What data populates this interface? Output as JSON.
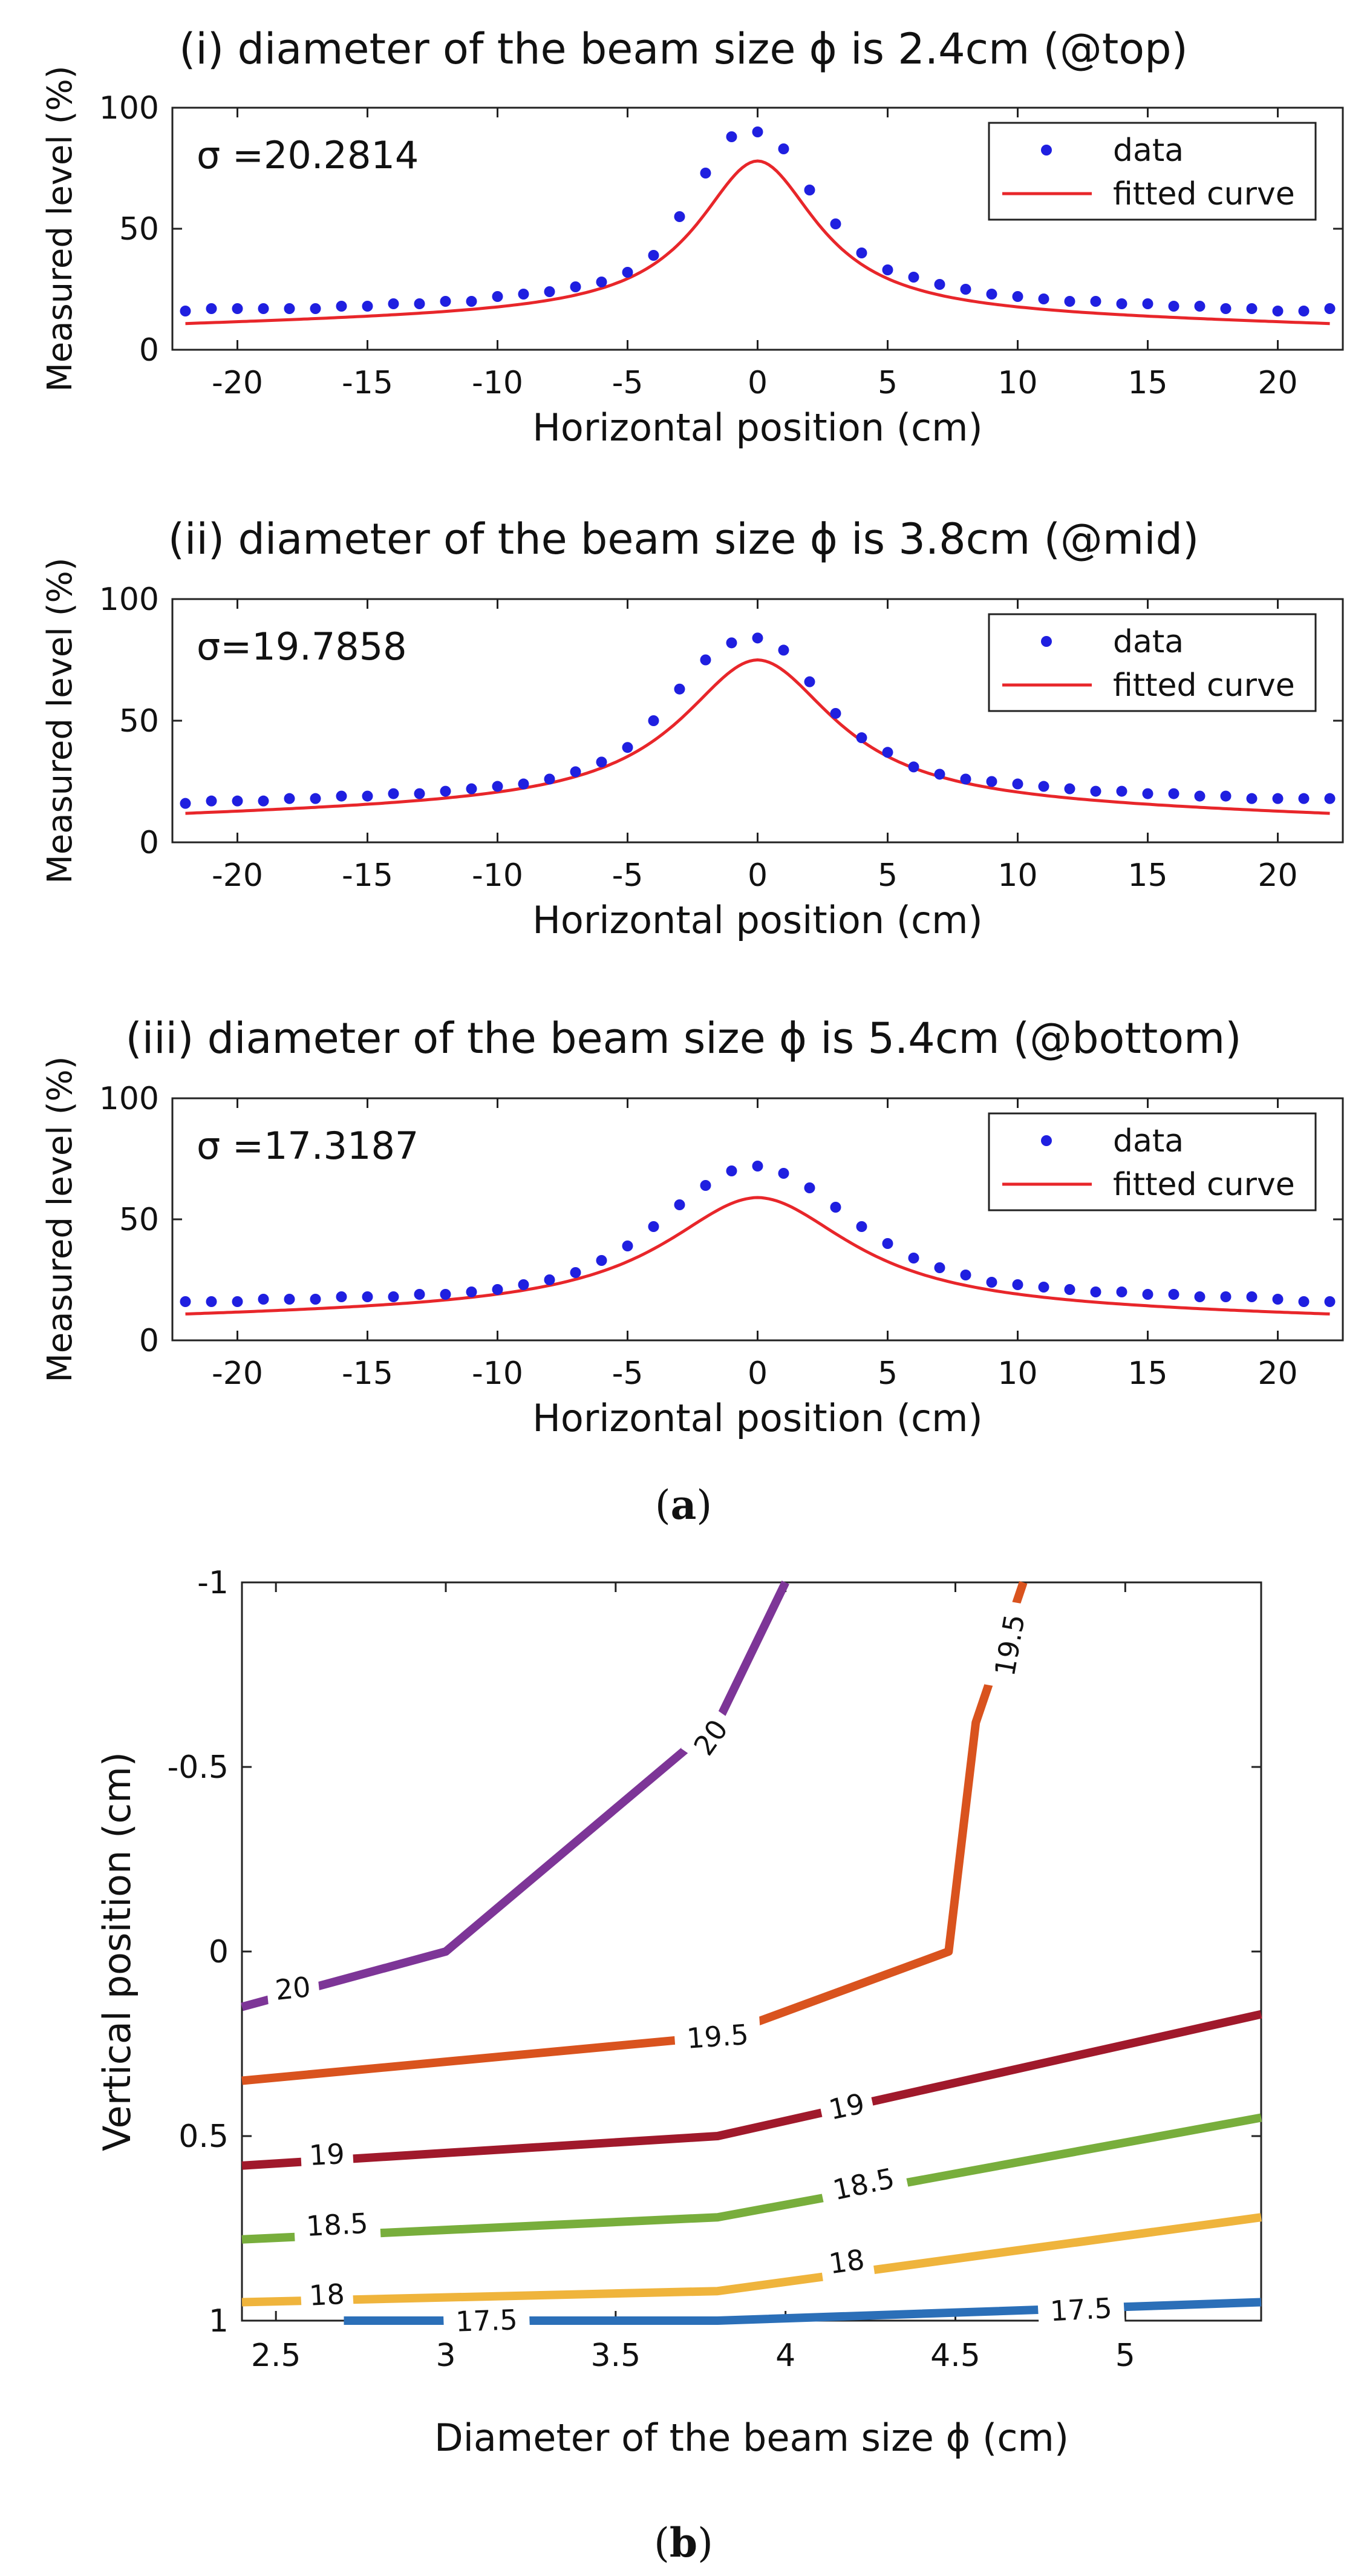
{
  "figure": {
    "caption_a": {
      "open": "(",
      "letter": "a",
      "close": ")"
    },
    "caption_b": {
      "open": "(",
      "letter": "b",
      "close": ")"
    }
  },
  "colors": {
    "data_marker": "#1f1fe0",
    "fit_line": "#e8262a",
    "contour_17_5": "#2b6fb8",
    "contour_18": "#efb43c",
    "contour_18_5": "#78ae3c",
    "contour_19": "#a0192b",
    "contour_19_5": "#d9531e",
    "contour_20": "#7d3597"
  },
  "chart_data": [
    {
      "type": "scatter",
      "id": "i",
      "title": "(i) diameter of the beam size ϕ is 2.4cm (@top)",
      "xlabel": "Horizontal position (cm)",
      "ylabel": "Measured level (%)",
      "annotation": "σ =20.2814",
      "xlim": [
        -22.5,
        22.5
      ],
      "ylim": [
        0,
        100
      ],
      "xticks": [
        -20,
        -15,
        -10,
        -5,
        0,
        5,
        10,
        15,
        20
      ],
      "xtick_labels": [
        "-20",
        "-15",
        "-10",
        "-5",
        "0",
        "5",
        "10",
        "15",
        "20"
      ],
      "yticks": [
        0,
        50,
        100
      ],
      "ytick_labels": [
        "0",
        "50",
        "100"
      ],
      "legend": [
        "data",
        "fitted curve"
      ],
      "legend_position": "top-right",
      "fit": {
        "baseline": 7,
        "slope_base": 16,
        "slope": 0.28,
        "peak": 62,
        "width": 2.8
      },
      "series": [
        {
          "name": "data",
          "x": [
            -22,
            -21,
            -20,
            -19,
            -18,
            -17,
            -16,
            -15,
            -14,
            -13,
            -12,
            -11,
            -10,
            -9,
            -8,
            -7,
            -6,
            -5,
            -4,
            -3,
            -2,
            -1,
            0,
            1,
            2,
            3,
            4,
            5,
            6,
            7,
            8,
            9,
            10,
            11,
            12,
            13,
            14,
            15,
            16,
            17,
            18,
            19,
            20,
            21,
            22
          ],
          "y": [
            16,
            17,
            17,
            17,
            17,
            17,
            18,
            18,
            19,
            19,
            20,
            20,
            22,
            23,
            24,
            26,
            28,
            32,
            39,
            55,
            73,
            88,
            90,
            83,
            66,
            52,
            40,
            33,
            30,
            27,
            25,
            23,
            22,
            21,
            20,
            20,
            19,
            19,
            18,
            18,
            17,
            17,
            16,
            16,
            17
          ]
        }
      ]
    },
    {
      "type": "scatter",
      "id": "ii",
      "title": "(ii) diameter of the beam size ϕ is 3.8cm (@mid)",
      "xlabel": "Horizontal position (cm)",
      "ylabel": "Measured level (%)",
      "annotation": "σ=19.7858",
      "xlim": [
        -22.5,
        22.5
      ],
      "ylim": [
        0,
        100
      ],
      "xticks": [
        -20,
        -15,
        -10,
        -5,
        0,
        5,
        10,
        15,
        20
      ],
      "xtick_labels": [
        "-20",
        "-15",
        "-10",
        "-5",
        "0",
        "5",
        "10",
        "15",
        "20"
      ],
      "yticks": [
        0,
        50,
        100
      ],
      "ytick_labels": [
        "0",
        "50",
        "100"
      ],
      "legend": [
        "data",
        "fitted curve"
      ],
      "legend_position": "top-right",
      "fit": {
        "baseline": 7,
        "slope_base": 17,
        "slope": 0.3,
        "peak": 58,
        "width": 3.6
      },
      "series": [
        {
          "name": "data",
          "x": [
            -22,
            -21,
            -20,
            -19,
            -18,
            -17,
            -16,
            -15,
            -14,
            -13,
            -12,
            -11,
            -10,
            -9,
            -8,
            -7,
            -6,
            -5,
            -4,
            -3,
            -2,
            -1,
            0,
            1,
            2,
            3,
            4,
            5,
            6,
            7,
            8,
            9,
            10,
            11,
            12,
            13,
            14,
            15,
            16,
            17,
            18,
            19,
            20,
            21,
            22
          ],
          "y": [
            16,
            17,
            17,
            17,
            18,
            18,
            19,
            19,
            20,
            20,
            21,
            22,
            23,
            24,
            26,
            29,
            33,
            39,
            50,
            63,
            75,
            82,
            84,
            79,
            66,
            53,
            43,
            37,
            31,
            28,
            26,
            25,
            24,
            23,
            22,
            21,
            21,
            20,
            20,
            19,
            19,
            18,
            18,
            18,
            18
          ]
        }
      ]
    },
    {
      "type": "scatter",
      "id": "iii",
      "title": "(iii) diameter of the beam size ϕ is 5.4cm (@bottom)",
      "xlabel": "Horizontal position (cm)",
      "ylabel": "Measured level (%)",
      "annotation": "σ =17.3187",
      "xlim": [
        -22.5,
        22.5
      ],
      "ylim": [
        0,
        100
      ],
      "xticks": [
        -20,
        -15,
        -10,
        -5,
        0,
        5,
        10,
        15,
        20
      ],
      "xtick_labels": [
        "-20",
        "-15",
        "-10",
        "-5",
        "0",
        "5",
        "10",
        "15",
        "20"
      ],
      "yticks": [
        0,
        50,
        100
      ],
      "ytick_labels": [
        "0",
        "50",
        "100"
      ],
      "legend": [
        "data",
        "fitted curve"
      ],
      "legend_position": "top-right",
      "fit": {
        "baseline": 8,
        "slope_base": 14,
        "slope": 0.22,
        "peak": 45,
        "width": 4.4
      },
      "series": [
        {
          "name": "data",
          "x": [
            -22,
            -21,
            -20,
            -19,
            -18,
            -17,
            -16,
            -15,
            -14,
            -13,
            -12,
            -11,
            -10,
            -9,
            -8,
            -7,
            -6,
            -5,
            -4,
            -3,
            -2,
            -1,
            0,
            1,
            2,
            3,
            4,
            5,
            6,
            7,
            8,
            9,
            10,
            11,
            12,
            13,
            14,
            15,
            16,
            17,
            18,
            19,
            20,
            21,
            22
          ],
          "y": [
            16,
            16,
            16,
            17,
            17,
            17,
            18,
            18,
            18,
            19,
            19,
            20,
            21,
            23,
            25,
            28,
            33,
            39,
            47,
            56,
            64,
            70,
            72,
            69,
            63,
            55,
            47,
            40,
            34,
            30,
            27,
            24,
            23,
            22,
            21,
            20,
            20,
            19,
            19,
            18,
            18,
            18,
            17,
            16,
            16
          ]
        }
      ]
    },
    {
      "type": "contour",
      "id": "b",
      "xlabel": "Diameter of the beam size ϕ (cm)",
      "ylabel": "Vertical position (cm)",
      "xlim": [
        2.4,
        5.4
      ],
      "ylim": [
        -1,
        1
      ],
      "y_reversed": true,
      "xticks": [
        2.5,
        3,
        3.5,
        4,
        4.5,
        5
      ],
      "xtick_labels": [
        "2.5",
        "3",
        "3.5",
        "4",
        "4.5",
        "5"
      ],
      "yticks": [
        -1,
        -0.5,
        0,
        0.5,
        1
      ],
      "ytick_labels": [
        "-1",
        "-0.5",
        "0",
        "0.5",
        "1"
      ],
      "series": [
        {
          "name": "20",
          "level": 20,
          "color_key": "contour_20",
          "x": [
            2.4,
            3.0,
            3.8,
            4.0
          ],
          "y": [
            0.15,
            0.0,
            -0.62,
            -1.0
          ],
          "labels": [
            {
              "text": "20",
              "x": 2.55,
              "y": 0.1,
              "angle": -6
            },
            {
              "text": "20",
              "x": 3.78,
              "y": -0.58,
              "angle": -55
            }
          ]
        },
        {
          "name": "19.5",
          "level": 19.5,
          "color_key": "contour_19_5",
          "x": [
            2.4,
            3.8,
            4.48,
            4.56,
            4.7
          ],
          "y": [
            0.35,
            0.23,
            0.0,
            -0.62,
            -1.0
          ],
          "labels": [
            {
              "text": "19.5",
              "x": 3.8,
              "y": 0.23,
              "angle": -4
            },
            {
              "text": "19.5",
              "x": 4.66,
              "y": -0.83,
              "angle": -80
            }
          ]
        },
        {
          "name": "19",
          "level": 19,
          "color_key": "contour_19",
          "x": [
            2.4,
            3.8,
            5.4
          ],
          "y": [
            0.58,
            0.5,
            0.17
          ],
          "labels": [
            {
              "text": "19",
              "x": 2.65,
              "y": 0.55,
              "angle": -3
            },
            {
              "text": "19",
              "x": 4.18,
              "y": 0.42,
              "angle": -12
            }
          ]
        },
        {
          "name": "18.5",
          "level": 18.5,
          "color_key": "contour_18_5",
          "x": [
            2.4,
            3.8,
            5.4
          ],
          "y": [
            0.78,
            0.72,
            0.45
          ],
          "labels": [
            {
              "text": "18.5",
              "x": 2.68,
              "y": 0.74,
              "angle": -3
            },
            {
              "text": "18.5",
              "x": 4.23,
              "y": 0.63,
              "angle": -12
            }
          ]
        },
        {
          "name": "18",
          "level": 18,
          "color_key": "contour_18",
          "x": [
            2.4,
            3.8,
            5.4
          ],
          "y": [
            0.95,
            0.92,
            0.72
          ],
          "labels": [
            {
              "text": "18",
              "x": 2.65,
              "y": 0.93,
              "angle": -3
            },
            {
              "text": "18",
              "x": 4.18,
              "y": 0.84,
              "angle": -8
            }
          ]
        },
        {
          "name": "17.5",
          "level": 17.5,
          "color_key": "contour_17_5",
          "x": [
            2.7,
            3.8,
            5.4
          ],
          "y": [
            1.0,
            1.0,
            0.95
          ],
          "labels": [
            {
              "text": "17.5",
              "x": 3.12,
              "y": 1.0,
              "angle": -2
            },
            {
              "text": "17.5",
              "x": 4.87,
              "y": 0.97,
              "angle": -3
            }
          ]
        }
      ]
    }
  ]
}
